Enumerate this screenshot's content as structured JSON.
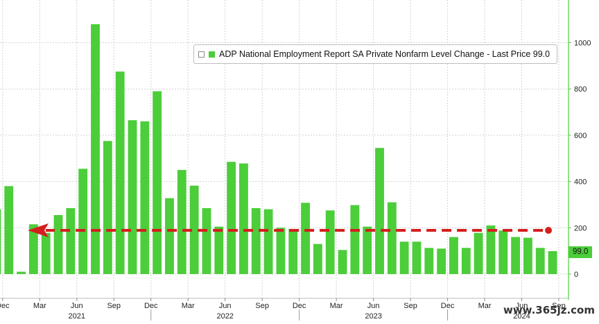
{
  "chart_data": {
    "type": "bar",
    "title": "",
    "xlabel": "",
    "ylabel": "",
    "ylim": [
      -60,
      1180
    ],
    "yticks": [
      0,
      200,
      400,
      600,
      800,
      1000
    ],
    "color": "#4ccd3a",
    "grid": true,
    "legend": {
      "placement": "top",
      "label": "ADP National Employment Report SA Private Nonfarm Level Change - Last Price 99.0"
    },
    "last_value_badge": "99.0",
    "series": [
      {
        "name": "ADP National Employment Report SA Private Nonfarm Level Change",
        "values": [
          280,
          380,
          10,
          215,
          178,
          255,
          285,
          455,
          1080,
          575,
          875,
          665,
          660,
          790,
          328,
          450,
          382,
          285,
          205,
          485,
          478,
          285,
          280,
          200,
          195,
          308,
          130,
          275,
          104,
          298,
          205,
          545,
          310,
          140,
          140,
          113,
          110,
          160,
          113,
          178,
          210,
          188,
          160,
          157,
          113,
          99
        ]
      }
    ],
    "x_tick_labels": [
      "Dec",
      "Mar",
      "Jun",
      "Sep",
      "Dec",
      "Mar",
      "Jun",
      "Sep",
      "Dec",
      "Mar",
      "Jun",
      "Sep",
      "Dec",
      "Mar",
      "Jun",
      "Sep"
    ],
    "x_tick_index": [
      1,
      4,
      7,
      10,
      13,
      16,
      19,
      22,
      25,
      28,
      31,
      34,
      37,
      40,
      43,
      46
    ],
    "year_labels": [
      "2021",
      "2022",
      "2023",
      "2024"
    ],
    "year_label_index": [
      7,
      19,
      31,
      43
    ],
    "reference_arrow_value": 99
  },
  "watermark": "www.365jz.com"
}
